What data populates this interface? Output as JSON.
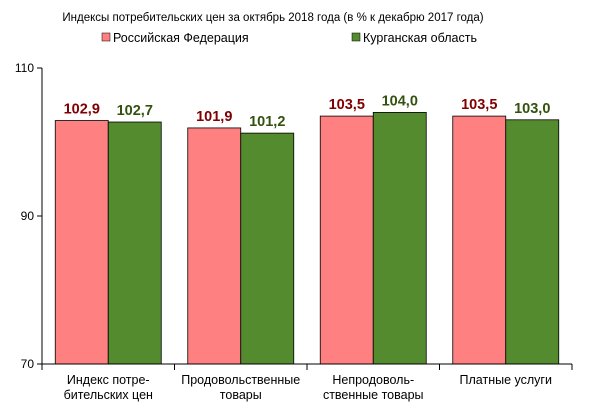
{
  "chart_data": {
    "type": "bar",
    "title": "Индексы потребительских цен за октябрь 2018 года (в % к декабрю 2017 года)",
    "categories": [
      [
        "Индекс потре-",
        "бительских цен"
      ],
      [
        "Продовольственные",
        "товары"
      ],
      [
        "Непродоволь-",
        "ственные товары"
      ],
      [
        "Платные услуги"
      ]
    ],
    "series": [
      {
        "name": "Российская Федерация",
        "color": "#ff8080",
        "label_color": "#800000",
        "values": [
          102.9,
          101.9,
          103.5,
          103.5
        ],
        "labels": [
          "102,9",
          "101,9",
          "103,5",
          "103,5"
        ]
      },
      {
        "name": "Курганская область",
        "color": "#558b2f",
        "label_color": "#33520f",
        "values": [
          102.7,
          101.2,
          104.0,
          103.0
        ],
        "labels": [
          "102,7",
          "101,2",
          "104,0",
          "103,0"
        ]
      }
    ],
    "ylim": [
      70,
      110
    ],
    "yticks": [
      70,
      90,
      110
    ],
    "ytick_labels": [
      "70",
      "90",
      "110"
    ],
    "grid": false,
    "legend": "top"
  }
}
